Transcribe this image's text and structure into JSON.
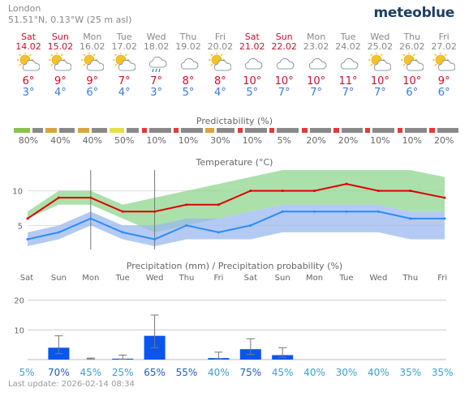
{
  "header": {
    "location": "London",
    "coords": "51.51°N, 0.13°W (25 m asl)",
    "brand": "meteoblue"
  },
  "days": [
    {
      "name": "Sat",
      "date": "14.02",
      "icon": "sun-cloud-icon",
      "tmax": "6°",
      "tmin": "3°",
      "weekend": true
    },
    {
      "name": "Sun",
      "date": "15.02",
      "icon": "sun-cloud-icon",
      "tmax": "9°",
      "tmin": "4°",
      "weekend": true
    },
    {
      "name": "Mon",
      "date": "16.02",
      "icon": "sun-cloud-icon",
      "tmax": "9°",
      "tmin": "6°",
      "weekend": false
    },
    {
      "name": "Tue",
      "date": "17.02",
      "icon": "sun-cloud-icon",
      "tmax": "7°",
      "tmin": "4°",
      "weekend": false
    },
    {
      "name": "Wed",
      "date": "18.02",
      "icon": "rain-icon",
      "tmax": "7°",
      "tmin": "3°",
      "weekend": false
    },
    {
      "name": "Thu",
      "date": "19.02",
      "icon": "cloud-icon",
      "tmax": "8°",
      "tmin": "5°",
      "weekend": false
    },
    {
      "name": "Fri",
      "date": "20.02",
      "icon": "sun-cloud-icon",
      "tmax": "8°",
      "tmin": "4°",
      "weekend": false
    },
    {
      "name": "Sat",
      "date": "21.02",
      "icon": "cloud-icon",
      "tmax": "10°",
      "tmin": "5°",
      "weekend": true
    },
    {
      "name": "Sun",
      "date": "22.02",
      "icon": "cloud-icon",
      "tmax": "10°",
      "tmin": "7°",
      "weekend": true
    },
    {
      "name": "Mon",
      "date": "23.02",
      "icon": "cloud-icon",
      "tmax": "10°",
      "tmin": "7°",
      "weekend": false
    },
    {
      "name": "Tue",
      "date": "24.02",
      "icon": "cloud-icon",
      "tmax": "11°",
      "tmin": "7°",
      "weekend": false
    },
    {
      "name": "Wed",
      "date": "25.02",
      "icon": "sun-cloud-icon",
      "tmax": "10°",
      "tmin": "7°",
      "weekend": false
    },
    {
      "name": "Thu",
      "date": "26.02",
      "icon": "sun-cloud-icon",
      "tmax": "10°",
      "tmin": "6°",
      "weekend": false
    },
    {
      "name": "Fri",
      "date": "27.02",
      "icon": "sun-cloud-icon",
      "tmax": "9°",
      "tmin": "6°",
      "weekend": false
    }
  ],
  "predictability": {
    "title": "Predictability (%)",
    "values": [
      "80%",
      "40%",
      "40%",
      "50%",
      "10%",
      "10%",
      "30%",
      "10%",
      "5%",
      "20%",
      "20%",
      "10%",
      "10%",
      "20%"
    ],
    "levels": [
      0.8,
      0.4,
      0.4,
      0.5,
      0.1,
      0.1,
      0.3,
      0.1,
      0.05,
      0.2,
      0.2,
      0.1,
      0.1,
      0.2
    ],
    "colors": [
      "#8bc34a",
      "#d9a441",
      "#d9a441",
      "#e6df4c",
      "#e53935",
      "#e53935",
      "#d9a441",
      "#e53935",
      "#e53935",
      "#e53935",
      "#e53935",
      "#e53935",
      "#e53935",
      "#e53935"
    ]
  },
  "temperature": {
    "title": "Temperature (°C)"
  },
  "precipitation": {
    "title": "Precipitation (mm) / Precipitation probability (%)",
    "day_labels": [
      "Sat",
      "Sun",
      "Mon",
      "Tue",
      "Wed",
      "Thu",
      "Fri",
      "Sat",
      "Sun",
      "Mon",
      "Tue",
      "Wed",
      "Thu",
      "Fri"
    ],
    "probabilities": [
      "5%",
      "70%",
      "45%",
      "25%",
      "65%",
      "55%",
      "40%",
      "75%",
      "45%",
      "40%",
      "30%",
      "40%",
      "35%",
      "35%"
    ]
  },
  "chart_data": [
    {
      "type": "line",
      "title": "Temperature (°C)",
      "x": [
        "14.02",
        "15.02",
        "16.02",
        "17.02",
        "18.02",
        "19.02",
        "20.02",
        "21.02",
        "22.02",
        "23.02",
        "24.02",
        "25.02",
        "26.02",
        "27.02"
      ],
      "ylim": [
        2,
        13
      ],
      "yticks": [
        "5",
        "10"
      ],
      "series": [
        {
          "name": "max",
          "color": "#e00000",
          "values": [
            6,
            9,
            9,
            7,
            7,
            8,
            8,
            10,
            10,
            10,
            11,
            10,
            10,
            9
          ],
          "range_low": [
            6,
            8,
            8,
            6,
            4,
            5,
            6,
            7,
            8,
            8,
            8,
            8,
            7,
            7
          ],
          "range_high": [
            7,
            10,
            10,
            8,
            9,
            10,
            11,
            12,
            13,
            13,
            13,
            13,
            13,
            12
          ]
        },
        {
          "name": "min",
          "color": "#2a8cff",
          "values": [
            3,
            4,
            6,
            4,
            3,
            5,
            4,
            5,
            7,
            7,
            7,
            7,
            6,
            6
          ],
          "range_low": [
            2,
            3,
            5,
            3,
            2,
            3,
            3,
            3,
            4,
            4,
            4,
            4,
            3,
            3
          ],
          "range_high": [
            4,
            5,
            7,
            5,
            5,
            6,
            6,
            7,
            8,
            8,
            8,
            8,
            7,
            7
          ]
        }
      ],
      "grid": true
    },
    {
      "type": "bar",
      "title": "Precipitation (mm) / Precipitation probability (%)",
      "categories": [
        "Sat",
        "Sun",
        "Mon",
        "Tue",
        "Wed",
        "Thu",
        "Fri",
        "Sat",
        "Sun",
        "Mon",
        "Tue",
        "Wed",
        "Thu",
        "Fri"
      ],
      "ylim": [
        0,
        30
      ],
      "yticks": [
        "10",
        "20"
      ],
      "series": [
        {
          "name": "precipitation",
          "color": "#0a55ee",
          "values": [
            0,
            4,
            0,
            0.3,
            8,
            0,
            0.5,
            3.5,
            1.5,
            0,
            0,
            0,
            0,
            0
          ],
          "err_high": [
            0,
            8,
            0.5,
            1.5,
            15,
            0,
            2.5,
            7,
            4,
            0,
            0,
            0,
            0,
            0
          ]
        }
      ],
      "grid": true
    }
  ]
}
